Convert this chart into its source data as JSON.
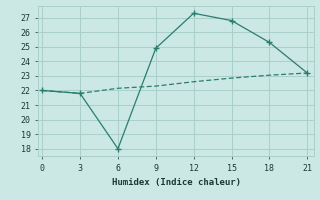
{
  "xlabel": "Humidex (Indice chaleur)",
  "x": [
    0,
    3,
    6,
    9,
    12,
    15,
    18,
    21
  ],
  "line1_y": [
    22,
    21.8,
    18,
    24.9,
    27.3,
    26.8,
    25.3,
    23.2
  ],
  "line2_y": [
    22,
    21.8,
    22.15,
    22.3,
    22.6,
    22.85,
    23.05,
    23.2
  ],
  "line_color": "#2a7d6e",
  "bg_color": "#cce8e4",
  "grid_color": "#aacfc9",
  "xlim": [
    -0.3,
    21.5
  ],
  "ylim": [
    17.5,
    27.8
  ],
  "xticks": [
    0,
    3,
    6,
    9,
    12,
    15,
    18,
    21
  ],
  "yticks": [
    18,
    19,
    20,
    21,
    22,
    23,
    24,
    25,
    26,
    27
  ]
}
